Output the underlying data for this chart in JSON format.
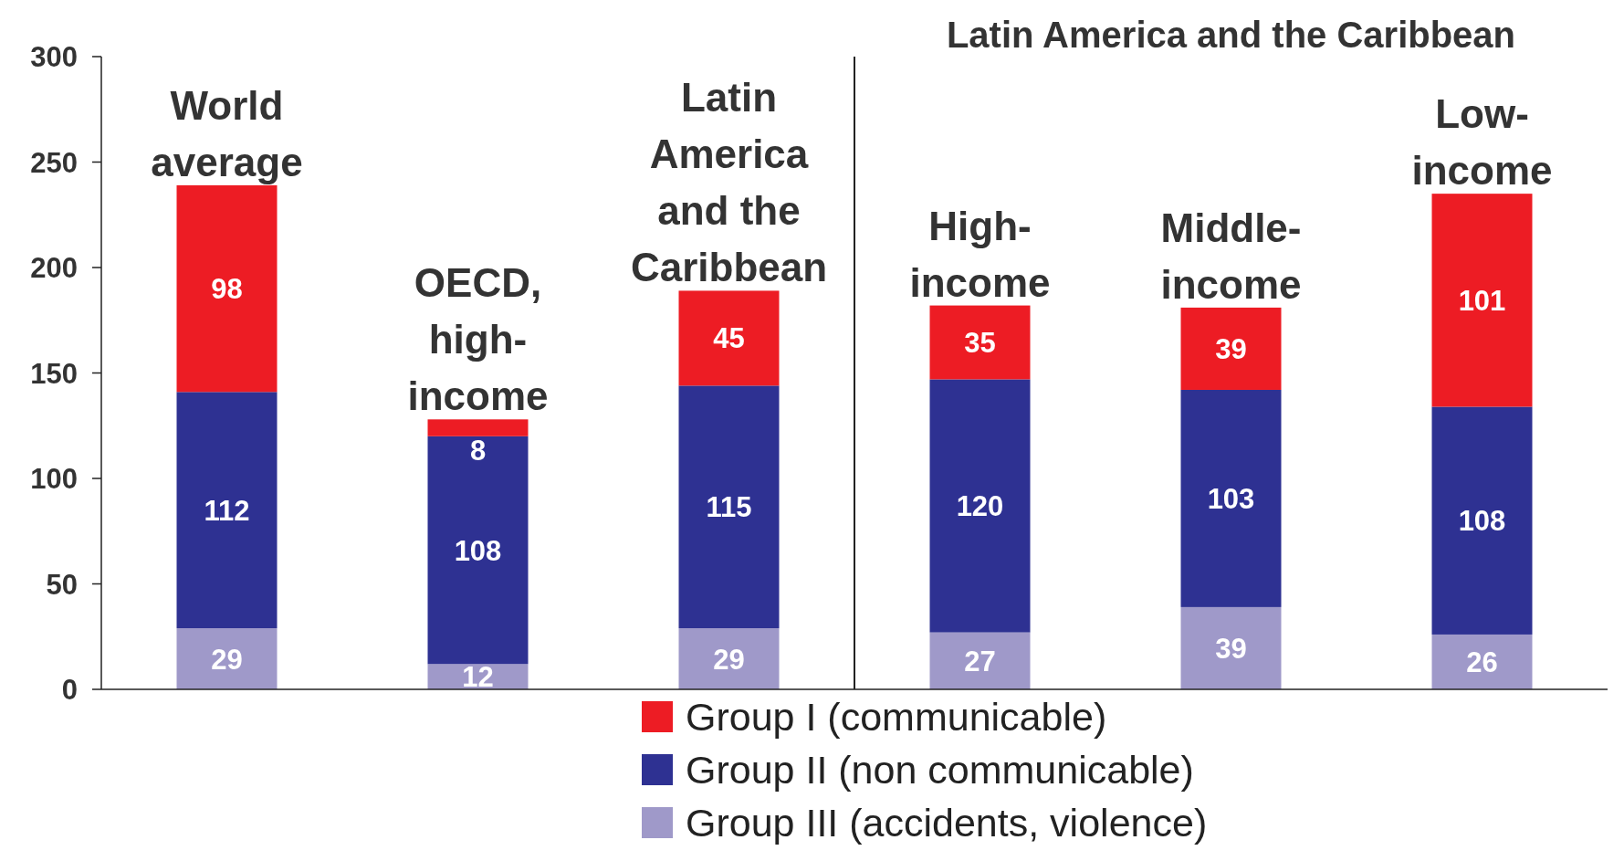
{
  "chart_data": {
    "type": "bar",
    "stacked": true,
    "categories": [
      "World average",
      "OECD, high-income",
      "Latin America and the Caribbean",
      "High-income",
      "Middle-income",
      "Low-income"
    ],
    "series": [
      {
        "name": "Group III (accidents, violence)",
        "color": "#9f99c9",
        "values": [
          29,
          12,
          29,
          27,
          39,
          26
        ]
      },
      {
        "name": "Group II (non communicable)",
        "color": "#2e3192",
        "values": [
          112,
          108,
          115,
          120,
          103,
          108
        ]
      },
      {
        "name": "Group I (communicable)",
        "color": "#ed1c24",
        "values": [
          98,
          8,
          45,
          35,
          39,
          101
        ]
      }
    ],
    "ylim": [
      0,
      300
    ],
    "yticks": [
      0,
      50,
      100,
      150,
      200,
      250,
      300
    ],
    "data_labels": true,
    "legend": "bottom",
    "annotations": [
      "Latin America and the Caribbean"
    ]
  }
}
